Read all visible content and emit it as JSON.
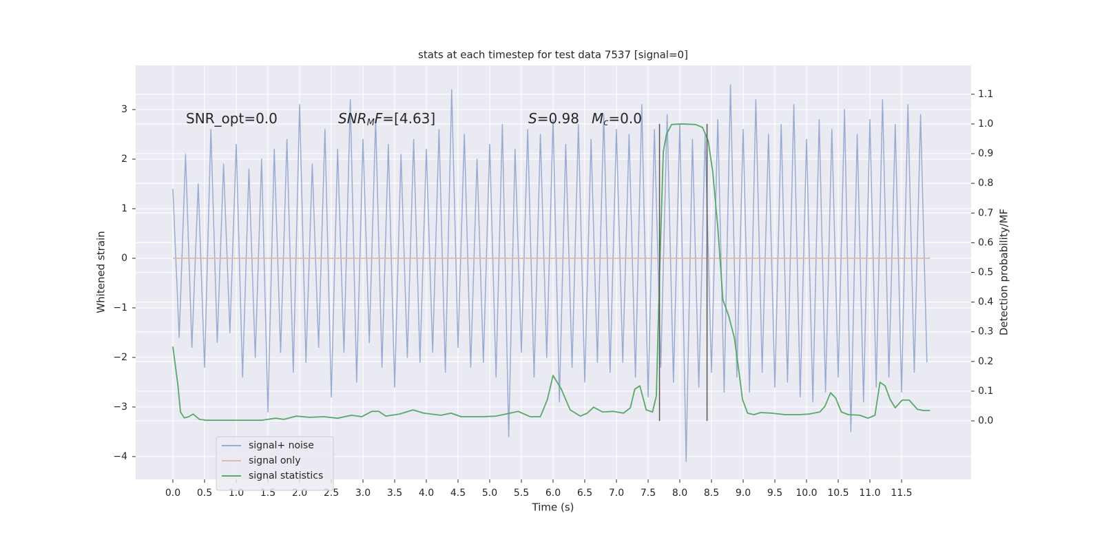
{
  "chart_data": {
    "type": "line",
    "title": "stats at each timestep for test data 7537 [signal=0]",
    "xlabel": "Time (s)",
    "ylabel": "Whitened strain",
    "y2label": "Detection probability/MF",
    "xlim": [
      -0.587,
      12.598
    ],
    "ylim": [
      -4.46,
      3.89
    ],
    "y2lim": [
      -0.197,
      1.197
    ],
    "xticks": [
      {
        "value": 0,
        "label": "0.0"
      },
      {
        "value": 0.5,
        "label": "0.5"
      },
      {
        "value": 1,
        "label": "1.0"
      },
      {
        "value": 1.5,
        "label": "1.5"
      },
      {
        "value": 2,
        "label": "2.0"
      },
      {
        "value": 2.5,
        "label": "2.5"
      },
      {
        "value": 3,
        "label": "3.0"
      },
      {
        "value": 3.5,
        "label": "3.5"
      },
      {
        "value": 4,
        "label": "4.0"
      },
      {
        "value": 4.5,
        "label": "4.5"
      },
      {
        "value": 5,
        "label": "5.0"
      },
      {
        "value": 5.5,
        "label": "5.5"
      },
      {
        "value": 6,
        "label": "6.0"
      },
      {
        "value": 6.5,
        "label": "6.5"
      },
      {
        "value": 7,
        "label": "7.0"
      },
      {
        "value": 7.5,
        "label": "7.5"
      },
      {
        "value": 8,
        "label": "8.0"
      },
      {
        "value": 8.5,
        "label": "8.5"
      },
      {
        "value": 9,
        "label": "9.0"
      },
      {
        "value": 9.5,
        "label": "9.5"
      },
      {
        "value": 10,
        "label": "10.0"
      },
      {
        "value": 10.5,
        "label": "10.5"
      },
      {
        "value": 11,
        "label": "11.0"
      },
      {
        "value": 11.5,
        "label": "11.5"
      }
    ],
    "yticks": [
      {
        "value": -4,
        "label": "−4"
      },
      {
        "value": -3,
        "label": "−3"
      },
      {
        "value": -2,
        "label": "−2"
      },
      {
        "value": -1,
        "label": "−1"
      },
      0,
      1,
      2,
      3
    ],
    "y2ticks": [
      {
        "value": 0,
        "label": "0.0"
      },
      {
        "value": 0.1,
        "label": "0.1"
      },
      {
        "value": 0.2,
        "label": "0.2"
      },
      {
        "value": 0.3,
        "label": "0.3"
      },
      {
        "value": 0.4,
        "label": "0.4"
      },
      {
        "value": 0.5,
        "label": "0.5"
      },
      {
        "value": 0.6,
        "label": "0.6"
      },
      {
        "value": 0.7,
        "label": "0.7"
      },
      {
        "value": 0.8,
        "label": "0.8"
      },
      {
        "value": 0.9,
        "label": "0.9"
      },
      {
        "value": 1,
        "label": "1.0"
      },
      {
        "value": 1.1,
        "label": "1.1"
      }
    ],
    "grid": true,
    "legend": "lower left",
    "series": [
      {
        "name": "signal+ noise",
        "color": "#9aabd2",
        "x": [
          0,
          0.1,
          0.2,
          0.3,
          0.4,
          0.5,
          0.6,
          0.7,
          0.8,
          0.9,
          1,
          1.1,
          1.2,
          1.3,
          1.4,
          1.5,
          1.6,
          1.7,
          1.8,
          1.9,
          2,
          2.1,
          2.2,
          2.3,
          2.4,
          2.5,
          2.6,
          2.7,
          2.8,
          2.9,
          3,
          3.1,
          3.2,
          3.3,
          3.4,
          3.5,
          3.6,
          3.7,
          3.8,
          3.9,
          4,
          4.1,
          4.2,
          4.3,
          4.4,
          4.5,
          4.6,
          4.7,
          4.8,
          4.9,
          5,
          5.1,
          5.2,
          5.3,
          5.4,
          5.5,
          5.6,
          5.7,
          5.8,
          5.9,
          6,
          6.1,
          6.2,
          6.3,
          6.4,
          6.5,
          6.6,
          6.7,
          6.8,
          6.9,
          7,
          7.1,
          7.2,
          7.3,
          7.4,
          7.5,
          7.6,
          7.7,
          7.8,
          7.9,
          8,
          8.1,
          8.2,
          8.3,
          8.4,
          8.5,
          8.6,
          8.7,
          8.8,
          8.9,
          9,
          9.1,
          9.2,
          9.3,
          9.4,
          9.5,
          9.6,
          9.7,
          9.8,
          9.9,
          10,
          10.1,
          10.2,
          10.3,
          10.4,
          10.5,
          10.6,
          10.7,
          10.8,
          10.9,
          11,
          11.1,
          11.2,
          11.3,
          11.4,
          11.5,
          11.6,
          11.7,
          11.8,
          11.9
        ],
        "values": [
          1.4,
          -1.6,
          2.1,
          -1.8,
          1.5,
          -2.2,
          2.6,
          -1.7,
          1.9,
          -1.5,
          2.3,
          -2.4,
          1.8,
          -2.0,
          2.0,
          -3.1,
          2.2,
          -1.9,
          2.4,
          -2.3,
          3.1,
          -2.1,
          1.9,
          -1.8,
          2.6,
          -2.8,
          2.2,
          -1.9,
          3.2,
          -2.5,
          2.4,
          -1.7,
          2.8,
          -2.2,
          2.3,
          -2.6,
          2.1,
          -2.0,
          2.4,
          -2.1,
          2.2,
          -1.9,
          2.6,
          -2.3,
          3.4,
          -1.8,
          2.5,
          -2.2,
          2.0,
          -2.1,
          2.3,
          -2.4,
          2.7,
          -3.6,
          2.2,
          -1.9,
          2.6,
          -2.4,
          2.5,
          -2.0,
          2.8,
          -2.9,
          2.3,
          -2.2,
          2.7,
          -2.5,
          2.4,
          -2.1,
          2.9,
          -2.3,
          2.6,
          -2.1,
          2.5,
          -2.4,
          3.1,
          -2.8,
          2.6,
          -2.2,
          2.9,
          -2.5,
          2.7,
          -4.1,
          2.4,
          -2.6,
          2.5,
          -2.3,
          2.8,
          -2.7,
          3.5,
          -2.4,
          2.6,
          -2.7,
          3.2,
          -2.3,
          2.5,
          -2.6,
          2.7,
          -2.5,
          3.1,
          -2.8,
          2.4,
          -2.9,
          2.8,
          -2.7,
          2.6,
          -2.4,
          3.0,
          -3.5,
          2.5,
          -2.9,
          2.8,
          -2.6,
          3.2,
          -2.4,
          2.7,
          -2.7,
          3.1,
          -2.3,
          2.9,
          -2.1
        ]
      },
      {
        "name": "signal only",
        "color": "#e4b9a4",
        "x": [
          0,
          11.95
        ],
        "values": [
          0,
          0
        ]
      },
      {
        "name": "signal statistics",
        "color": "#55a868",
        "axis": "y2",
        "x": [
          0,
          0.08,
          0.12,
          0.18,
          0.25,
          0.32,
          0.42,
          0.53,
          1.08,
          1.4,
          1.62,
          1.75,
          1.95,
          2.16,
          2.38,
          2.6,
          2.82,
          2.98,
          3.14,
          3.25,
          3.36,
          3.58,
          3.79,
          3.96,
          4.23,
          4.39,
          4.55,
          4.88,
          5.1,
          5.32,
          5.45,
          5.64,
          5.8,
          5.91,
          6,
          6.13,
          6.27,
          6.43,
          6.54,
          6.64,
          6.78,
          6.95,
          7.11,
          7.22,
          7.29,
          7.37,
          7.47,
          7.57,
          7.63,
          7.68,
          7.74,
          7.79,
          7.87,
          8.03,
          8.25,
          8.36,
          8.45,
          8.52,
          8.6,
          8.68,
          8.77,
          8.86,
          8.92,
          8.99,
          9.07,
          9.17,
          9.28,
          9.45,
          9.66,
          9.88,
          10.04,
          10.21,
          10.29,
          10.38,
          10.46,
          10.55,
          10.66,
          10.84,
          10.97,
          11.08,
          11.16,
          11.24,
          11.32,
          11.4,
          11.51,
          11.62,
          11.75,
          11.84,
          11.95
        ],
        "values": [
          0.25,
          0.12,
          0.03,
          0.01,
          0.014,
          0.023,
          0.005,
          0.002,
          0.002,
          0.002,
          0.009,
          0.005,
          0.016,
          0.012,
          0.014,
          0.009,
          0.019,
          0.014,
          0.032,
          0.032,
          0.016,
          0.023,
          0.037,
          0.026,
          0.019,
          0.026,
          0.014,
          0.014,
          0.016,
          0.026,
          0.032,
          0.014,
          0.014,
          0.072,
          0.153,
          0.107,
          0.037,
          0.016,
          0.026,
          0.046,
          0.03,
          0.032,
          0.026,
          0.044,
          0.107,
          0.118,
          0.037,
          0.03,
          0.084,
          0.49,
          0.907,
          0.965,
          0.998,
          1.0,
          0.998,
          0.988,
          0.942,
          0.838,
          0.652,
          0.408,
          0.355,
          0.281,
          0.188,
          0.072,
          0.026,
          0.021,
          0.028,
          0.026,
          0.021,
          0.021,
          0.023,
          0.03,
          0.049,
          0.095,
          0.077,
          0.03,
          0.021,
          0.019,
          0.009,
          0.019,
          0.13,
          0.118,
          0.072,
          0.044,
          0.07,
          0.07,
          0.039,
          0.035,
          0.035
        ]
      }
    ],
    "vlines": {
      "x": [
        7.68,
        8.43
      ],
      "y2": [
        0,
        1
      ],
      "color": "#555555"
    },
    "annotations": [
      {
        "parts": [
          {
            "text": "SNR_opt=0.0"
          }
        ]
      },
      {
        "parts": [
          {
            "text": "SNR",
            "style": "italic"
          },
          {
            "text": "M",
            "style": "sub"
          },
          {
            "text": "F",
            "style": "italic"
          },
          {
            "text": "=[4.63]"
          }
        ]
      },
      {
        "parts": [
          {
            "text": "S",
            "style": "italic"
          },
          {
            "text": "=0.98"
          }
        ]
      },
      {
        "parts": [
          {
            "text": "M",
            "style": "italic"
          },
          {
            "text": "c",
            "style": "sub"
          },
          {
            "text": "=0.0"
          }
        ]
      }
    ]
  }
}
